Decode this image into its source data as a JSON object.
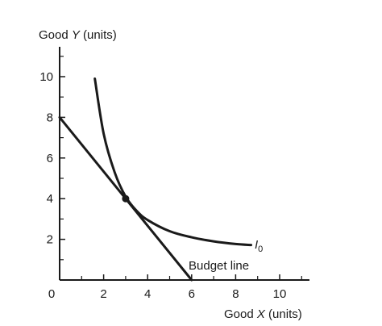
{
  "chart_data": {
    "type": "line",
    "title": "",
    "ylabel": {
      "prefix": "Good ",
      "var": "Y",
      "suffix": " (units)"
    },
    "xlabel": {
      "prefix": "Good ",
      "var": "X",
      "suffix": " (units)"
    },
    "xlim": [
      0,
      11.5
    ],
    "ylim": [
      0,
      11.5
    ],
    "origin_label": "0",
    "x_ticks": [
      2,
      4,
      6,
      8,
      10
    ],
    "y_ticks": [
      2,
      4,
      6,
      8,
      10
    ],
    "x_tick_labels": [
      "2",
      "4",
      "6",
      "8",
      "10"
    ],
    "y_tick_labels": [
      "2",
      "4",
      "6",
      "8",
      "10"
    ],
    "grid": false,
    "series": [
      {
        "label_text": "Budget line",
        "kind": "line",
        "points": [
          [
            0,
            8
          ],
          [
            6,
            0
          ]
        ]
      },
      {
        "label_main": "I",
        "label_sub": "0",
        "kind": "curve",
        "points": [
          [
            1.6,
            9.9
          ],
          [
            2.0,
            7.2
          ],
          [
            2.5,
            5.3
          ],
          [
            3.0,
            4.1
          ],
          [
            3.5,
            3.4
          ],
          [
            4.0,
            2.95
          ],
          [
            5.0,
            2.4
          ],
          [
            6.0,
            2.1
          ],
          [
            7.0,
            1.9
          ],
          [
            8.0,
            1.77
          ],
          [
            8.7,
            1.72
          ]
        ]
      }
    ],
    "points": [
      {
        "x": 3,
        "y": 4
      }
    ]
  }
}
